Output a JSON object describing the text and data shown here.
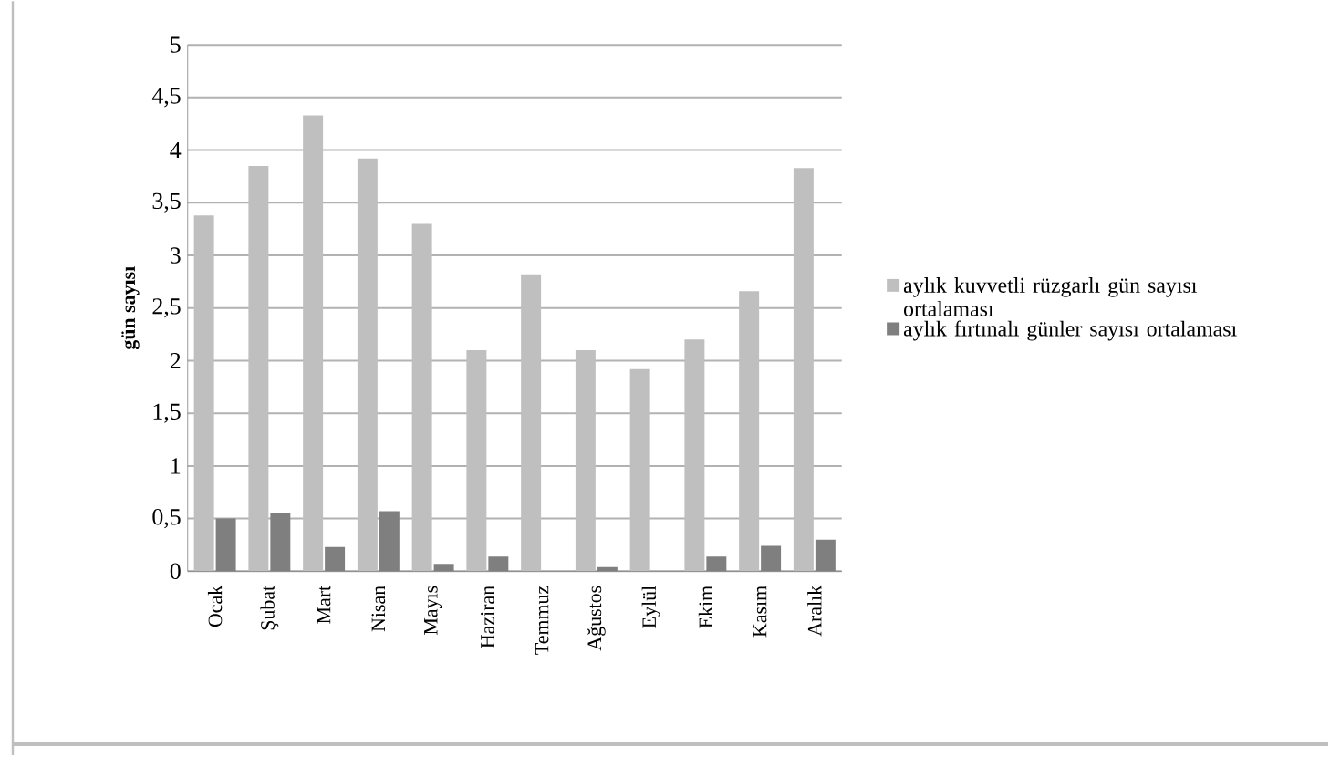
{
  "chart_data": {
    "type": "bar",
    "ylabel": "gün sayısı",
    "categories": [
      "Ocak",
      "Şubat",
      "Mart",
      "Nisan",
      "Mayıs",
      "Haziran",
      "Temmuz",
      "Ağustos",
      "Eylül",
      "Ekim",
      "Kasım",
      "Aralık"
    ],
    "series": [
      {
        "name": "aylık kuvvetli rüzgarlı gün sayısı ortalaması",
        "color": "#bfbfbf",
        "values": [
          3.38,
          3.85,
          4.33,
          3.92,
          3.3,
          2.1,
          2.82,
          2.1,
          1.92,
          2.2,
          2.66,
          3.83
        ]
      },
      {
        "name": "aylık fırtınalı günler sayısı ortalaması",
        "color": "#7f7f7f",
        "values": [
          0.5,
          0.55,
          0.23,
          0.57,
          0.07,
          0.14,
          0,
          0.04,
          0,
          0.14,
          0.24,
          0.3
        ]
      }
    ],
    "ylim": [
      0,
      5
    ],
    "yticks": [
      0,
      {
        "value": 0.5,
        "label": "0,5"
      },
      1,
      {
        "value": 1.5,
        "label": "1,5"
      },
      2,
      {
        "value": 2.5,
        "label": "2,5"
      },
      3,
      {
        "value": 3.5,
        "label": "3,5"
      },
      4,
      {
        "value": 4.5,
        "label": "4,5"
      },
      5
    ],
    "grid": "y",
    "legend": "right"
  }
}
